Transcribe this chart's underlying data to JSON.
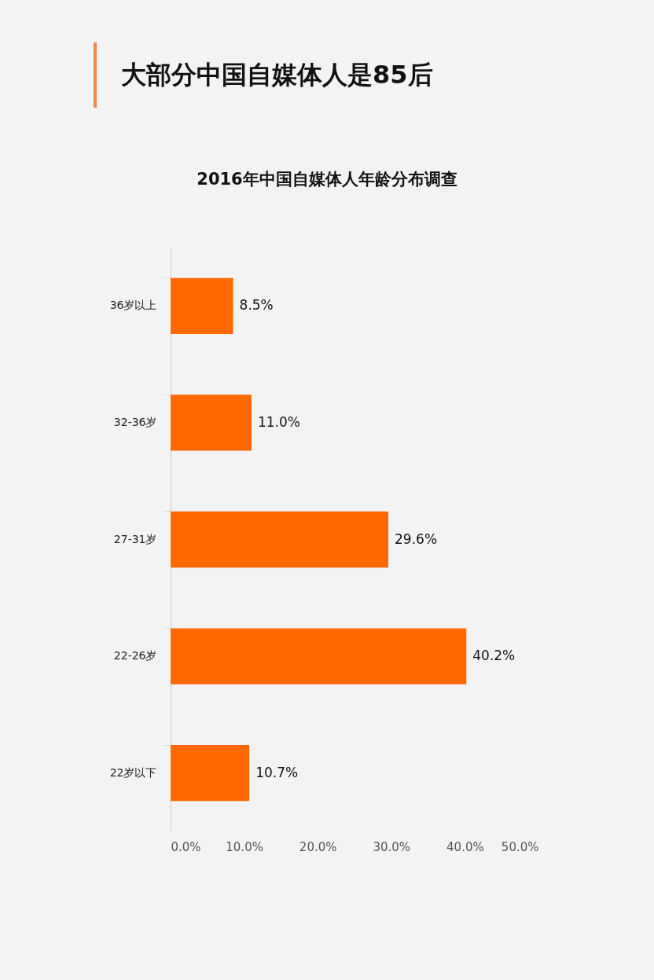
{
  "chart_data": {
    "type": "bar",
    "orientation": "horizontal",
    "title": "大部分中国自媒体人是85后",
    "subtitle": "2016年中国自媒体人年龄分布调查",
    "categories": [
      "36岁以上",
      "32-36岁",
      "27-31岁",
      "22-26岁",
      "22岁以下"
    ],
    "values": [
      8.5,
      11.0,
      29.6,
      40.2,
      10.7
    ],
    "value_labels": [
      "8.5%",
      "11.0%",
      "29.6%",
      "40.2%",
      "10.7%"
    ],
    "color": "#ff6a00",
    "xlim": [
      0,
      50
    ],
    "xticks": [
      {
        "value": 0,
        "label": "0.0%"
      },
      {
        "value": 10,
        "label": "10.0%"
      },
      {
        "value": 20,
        "label": "20.0%"
      },
      {
        "value": 30,
        "label": "30.0%"
      },
      {
        "value": 40,
        "label": "40.0%"
      },
      {
        "value": 50,
        "label": "50.0%"
      }
    ]
  }
}
